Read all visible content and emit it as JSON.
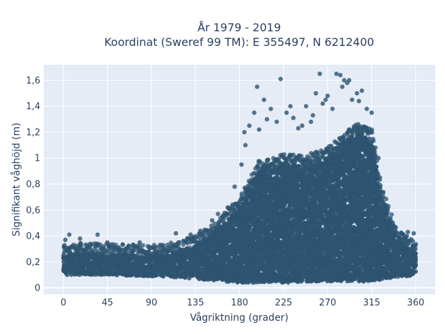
{
  "chart_data": {
    "type": "scatter",
    "title": "År 1979 - 2019",
    "subtitle": "Koordinat (Sweref 99 TM): E 355497, N 6212400",
    "xlabel": "Vågriktning (grader)",
    "ylabel": "Signifikant våghöjd (m)",
    "xlim": [
      -20,
      380
    ],
    "ylim": [
      -0.05,
      1.72
    ],
    "xticks": [
      0,
      45,
      90,
      135,
      180,
      225,
      270,
      315,
      360
    ],
    "xtick_labels": [
      "0",
      "45",
      "90",
      "135",
      "180",
      "225",
      "270",
      "315",
      "360"
    ],
    "yticks": [
      0,
      0.2,
      0.4,
      0.6,
      0.8,
      1.0,
      1.2,
      1.4,
      1.6
    ],
    "ytick_labels": [
      "0",
      "0,2",
      "0,4",
      "0,6",
      "0,8",
      "1",
      "1,2",
      "1,4",
      "1,6"
    ],
    "grid": true,
    "marker_color": "#2e5470",
    "plot_background": "#e5ecf6",
    "envelope": {
      "direction": [
        0,
        20,
        45,
        90,
        120,
        135,
        150,
        165,
        180,
        200,
        225,
        250,
        270,
        285,
        300,
        315,
        325,
        340,
        360
      ],
      "dense_upper": [
        0.25,
        0.27,
        0.26,
        0.25,
        0.28,
        0.33,
        0.4,
        0.5,
        0.62,
        0.9,
        0.95,
        0.95,
        1.0,
        1.1,
        1.2,
        1.15,
        0.7,
        0.38,
        0.27
      ],
      "dense_lower": [
        0.1,
        0.1,
        0.1,
        0.09,
        0.08,
        0.07,
        0.06,
        0.05,
        0.04,
        0.04,
        0.04,
        0.05,
        0.05,
        0.05,
        0.05,
        0.05,
        0.06,
        0.08,
        0.1
      ]
    },
    "outliers": [
      {
        "x": 2,
        "y": 0.37
      },
      {
        "x": 6,
        "y": 0.41
      },
      {
        "x": 17,
        "y": 0.38
      },
      {
        "x": 35,
        "y": 0.41
      },
      {
        "x": 45,
        "y": 0.35
      },
      {
        "x": 78,
        "y": 0.35
      },
      {
        "x": 102,
        "y": 0.33
      },
      {
        "x": 115,
        "y": 0.42
      },
      {
        "x": 130,
        "y": 0.41
      },
      {
        "x": 140,
        "y": 0.44
      },
      {
        "x": 152,
        "y": 0.52
      },
      {
        "x": 158,
        "y": 0.57
      },
      {
        "x": 168,
        "y": 0.62
      },
      {
        "x": 175,
        "y": 0.78
      },
      {
        "x": 182,
        "y": 0.95
      },
      {
        "x": 185,
        "y": 1.2
      },
      {
        "x": 190,
        "y": 1.25
      },
      {
        "x": 195,
        "y": 1.35
      },
      {
        "x": 198,
        "y": 1.55
      },
      {
        "x": 205,
        "y": 1.45
      },
      {
        "x": 208,
        "y": 1.3
      },
      {
        "x": 212,
        "y": 1.38
      },
      {
        "x": 218,
        "y": 1.28
      },
      {
        "x": 222,
        "y": 1.61
      },
      {
        "x": 228,
        "y": 1.35
      },
      {
        "x": 235,
        "y": 1.31
      },
      {
        "x": 240,
        "y": 1.23
      },
      {
        "x": 248,
        "y": 1.4
      },
      {
        "x": 255,
        "y": 1.33
      },
      {
        "x": 258,
        "y": 1.5
      },
      {
        "x": 262,
        "y": 1.65
      },
      {
        "x": 265,
        "y": 1.42
      },
      {
        "x": 270,
        "y": 1.48
      },
      {
        "x": 275,
        "y": 1.38
      },
      {
        "x": 279,
        "y": 1.65
      },
      {
        "x": 283,
        "y": 1.64
      },
      {
        "x": 285,
        "y": 1.55
      },
      {
        "x": 287,
        "y": 1.6
      },
      {
        "x": 290,
        "y": 1.58
      },
      {
        "x": 292,
        "y": 1.6
      },
      {
        "x": 295,
        "y": 1.45
      },
      {
        "x": 300,
        "y": 1.5
      },
      {
        "x": 305,
        "y": 1.52
      },
      {
        "x": 310,
        "y": 1.38
      },
      {
        "x": 315,
        "y": 1.35
      },
      {
        "x": 322,
        "y": 1.0
      },
      {
        "x": 330,
        "y": 0.6
      },
      {
        "x": 338,
        "y": 0.45
      },
      {
        "x": 345,
        "y": 0.42
      },
      {
        "x": 352,
        "y": 0.43
      },
      {
        "x": 358,
        "y": 0.42
      },
      {
        "x": 357,
        "y": 0.36
      },
      {
        "x": 350,
        "y": 0.39
      },
      {
        "x": 200,
        "y": 1.22
      },
      {
        "x": 232,
        "y": 1.4
      },
      {
        "x": 244,
        "y": 1.25
      },
      {
        "x": 268,
        "y": 1.45
      },
      {
        "x": 302,
        "y": 1.44
      },
      {
        "x": 186,
        "y": 1.1
      },
      {
        "x": 253,
        "y": 1.28
      }
    ]
  }
}
